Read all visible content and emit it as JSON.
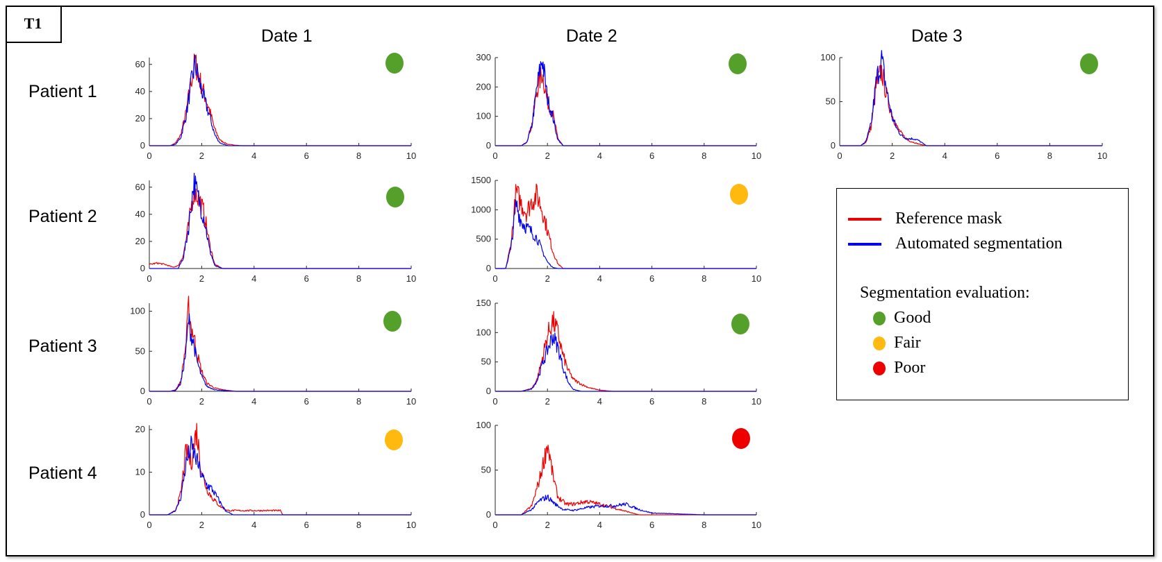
{
  "figure": {
    "corner_label": "T1",
    "columns": [
      "Date 1",
      "Date 2",
      "Date 3"
    ],
    "rows": [
      "Patient 1",
      "Patient 2",
      "Patient 3",
      "Patient 4"
    ]
  },
  "legend": {
    "reference_label": "Reference mask",
    "automated_label": "Automated segmentation",
    "evaluation_title": "Segmentation evaluation:",
    "good_label": "Good",
    "fair_label": "Fair",
    "poor_label": "Poor"
  },
  "colors": {
    "reference": "#ee0000",
    "automated": "#0000ee",
    "good": "#55a02a",
    "fair": "#ffb90f",
    "poor": "#ee0000"
  },
  "chart_data": [
    {
      "type": "line",
      "panel": "Patient 1 / Date 1",
      "evaluation": "good",
      "xlim": [
        0,
        10
      ],
      "ylim": [
        0,
        65
      ],
      "xticks": [
        0,
        2,
        4,
        6,
        8,
        10
      ],
      "yticks": [
        0,
        20,
        40,
        60
      ],
      "series": [
        {
          "legend": "reference",
          "x": [
            0,
            0.8,
            1.0,
            1.2,
            1.4,
            1.6,
            1.75,
            1.9,
            2.1,
            2.3,
            2.5,
            2.7,
            3.0,
            3.5,
            10
          ],
          "y": [
            0,
            0,
            2,
            8,
            24,
            48,
            62,
            50,
            38,
            26,
            12,
            4,
            1,
            0,
            0
          ]
        },
        {
          "legend": "automated",
          "x": [
            0,
            0.8,
            1.0,
            1.2,
            1.4,
            1.6,
            1.75,
            1.9,
            2.1,
            2.3,
            2.5,
            2.7,
            3.0,
            3.5,
            10
          ],
          "y": [
            0,
            0,
            1,
            6,
            22,
            46,
            60,
            48,
            34,
            22,
            8,
            2,
            0,
            0,
            0
          ]
        }
      ]
    },
    {
      "type": "line",
      "panel": "Patient 1 / Date 2",
      "evaluation": "good",
      "xlim": [
        0,
        10
      ],
      "ylim": [
        0,
        300
      ],
      "xticks": [
        0,
        2,
        4,
        6,
        8,
        10
      ],
      "yticks": [
        0,
        100,
        200,
        300
      ],
      "series": [
        {
          "legend": "reference",
          "x": [
            0,
            1.0,
            1.2,
            1.4,
            1.6,
            1.8,
            2.0,
            2.2,
            2.4,
            2.6,
            10
          ],
          "y": [
            0,
            0,
            12,
            70,
            190,
            250,
            150,
            110,
            25,
            0,
            0
          ]
        },
        {
          "legend": "automated",
          "x": [
            0,
            1.0,
            1.2,
            1.4,
            1.6,
            1.8,
            2.0,
            2.2,
            2.4,
            2.6,
            10
          ],
          "y": [
            0,
            0,
            10,
            65,
            200,
            300,
            160,
            100,
            20,
            0,
            0
          ]
        }
      ]
    },
    {
      "type": "line",
      "panel": "Patient 1 / Date 3",
      "evaluation": "good",
      "xlim": [
        0,
        10
      ],
      "ylim": [
        0,
        100
      ],
      "xticks": [
        0,
        2,
        4,
        6,
        8,
        10
      ],
      "yticks": [
        0,
        50,
        100
      ],
      "series": [
        {
          "legend": "reference",
          "x": [
            0,
            0.8,
            1.0,
            1.2,
            1.4,
            1.6,
            1.8,
            2.0,
            2.2,
            2.4,
            2.6,
            2.8,
            3.0,
            3.3,
            10
          ],
          "y": [
            0,
            0,
            4,
            22,
            70,
            85,
            55,
            35,
            20,
            12,
            6,
            4,
            2,
            0,
            0
          ]
        },
        {
          "legend": "automated",
          "x": [
            0,
            0.8,
            1.0,
            1.2,
            1.4,
            1.6,
            1.8,
            2.0,
            2.2,
            2.4,
            2.6,
            2.8,
            3.0,
            3.3,
            10
          ],
          "y": [
            0,
            0,
            5,
            25,
            75,
            98,
            60,
            32,
            18,
            10,
            8,
            8,
            6,
            0,
            0
          ]
        }
      ]
    },
    {
      "type": "line",
      "panel": "Patient 2 / Date 1",
      "evaluation": "good",
      "xlim": [
        0,
        10
      ],
      "ylim": [
        0,
        65
      ],
      "xticks": [
        0,
        2,
        4,
        6,
        8,
        10
      ],
      "yticks": [
        0,
        20,
        40,
        60
      ],
      "series": [
        {
          "legend": "reference",
          "x": [
            0,
            0.3,
            0.6,
            0.9,
            1.1,
            1.3,
            1.5,
            1.7,
            1.9,
            2.1,
            2.3,
            2.5,
            2.8,
            10
          ],
          "y": [
            3,
            4,
            3,
            1,
            2,
            10,
            32,
            58,
            52,
            40,
            18,
            3,
            0,
            0
          ]
        },
        {
          "legend": "automated",
          "x": [
            0,
            1.1,
            1.3,
            1.5,
            1.7,
            1.9,
            2.1,
            2.3,
            2.5,
            2.8,
            10
          ],
          "y": [
            0,
            0,
            8,
            30,
            64,
            50,
            36,
            14,
            2,
            0,
            0
          ]
        }
      ]
    },
    {
      "type": "line",
      "panel": "Patient 2 / Date 2",
      "evaluation": "fair",
      "xlim": [
        0,
        10
      ],
      "ylim": [
        0,
        1500
      ],
      "xticks": [
        0,
        2,
        4,
        6,
        8,
        10
      ],
      "yticks": [
        0,
        500,
        1000,
        1500
      ],
      "series": [
        {
          "legend": "reference",
          "x": [
            0,
            0.4,
            0.6,
            0.8,
            1.0,
            1.2,
            1.4,
            1.6,
            1.8,
            2.0,
            2.2,
            2.4,
            2.6,
            10
          ],
          "y": [
            0,
            0,
            400,
            1300,
            1100,
            950,
            1150,
            1250,
            1000,
            650,
            300,
            80,
            0,
            0
          ]
        },
        {
          "legend": "automated",
          "x": [
            0,
            0.4,
            0.6,
            0.8,
            1.0,
            1.2,
            1.4,
            1.6,
            1.8,
            2.0,
            2.2,
            2.4,
            10
          ],
          "y": [
            0,
            0,
            350,
            1100,
            800,
            700,
            620,
            520,
            300,
            110,
            20,
            0,
            0
          ]
        }
      ]
    },
    {
      "type": "line",
      "panel": "Patient 3 / Date 1",
      "evaluation": "good",
      "xlim": [
        0,
        10
      ],
      "ylim": [
        0,
        110
      ],
      "xticks": [
        0,
        2,
        4,
        6,
        8,
        10
      ],
      "yticks": [
        0,
        50,
        100
      ],
      "series": [
        {
          "legend": "reference",
          "x": [
            0,
            0.8,
            1.0,
            1.2,
            1.4,
            1.5,
            1.6,
            1.7,
            1.8,
            2.0,
            2.2,
            2.5,
            2.8,
            3.3,
            10
          ],
          "y": [
            0,
            0,
            2,
            12,
            60,
            105,
            80,
            70,
            50,
            25,
            10,
            4,
            2,
            0,
            0
          ]
        },
        {
          "legend": "automated",
          "x": [
            0,
            0.8,
            1.0,
            1.2,
            1.4,
            1.5,
            1.6,
            1.7,
            1.8,
            2.0,
            2.2,
            2.5,
            2.8,
            3.3,
            10
          ],
          "y": [
            0,
            0,
            1,
            10,
            50,
            90,
            70,
            60,
            40,
            18,
            6,
            2,
            1,
            0,
            0
          ]
        }
      ]
    },
    {
      "type": "line",
      "panel": "Patient 3 / Date 2",
      "evaluation": "good",
      "xlim": [
        0,
        10
      ],
      "ylim": [
        0,
        150
      ],
      "xticks": [
        0,
        2,
        4,
        6,
        8,
        10
      ],
      "yticks": [
        0,
        50,
        100,
        150
      ],
      "series": [
        {
          "legend": "reference",
          "x": [
            0,
            1.0,
            1.4,
            1.6,
            1.8,
            2.0,
            2.2,
            2.4,
            2.6,
            2.8,
            3.0,
            3.3,
            3.6,
            4.0,
            4.5,
            10
          ],
          "y": [
            0,
            0,
            5,
            20,
            55,
            95,
            120,
            100,
            60,
            35,
            20,
            12,
            6,
            2,
            0,
            0
          ]
        },
        {
          "legend": "automated",
          "x": [
            0,
            1.0,
            1.4,
            1.6,
            1.8,
            2.0,
            2.2,
            2.4,
            2.6,
            2.8,
            3.0,
            3.3,
            10
          ],
          "y": [
            0,
            0,
            4,
            18,
            45,
            70,
            95,
            75,
            40,
            15,
            3,
            0,
            0
          ]
        }
      ]
    },
    {
      "type": "line",
      "panel": "Patient 4 / Date 1",
      "evaluation": "fair",
      "xlim": [
        0,
        10
      ],
      "ylim": [
        0,
        21
      ],
      "xticks": [
        0,
        2,
        4,
        6,
        8,
        10
      ],
      "yticks": [
        0,
        10,
        20
      ],
      "series": [
        {
          "legend": "reference",
          "x": [
            0,
            0.7,
            1.0,
            1.2,
            1.4,
            1.6,
            1.8,
            2.0,
            2.2,
            2.4,
            2.7,
            3.0,
            3.5,
            4.0,
            4.5,
            5.0,
            5.1,
            10
          ],
          "y": [
            0,
            0,
            1,
            5,
            15,
            12,
            20,
            10,
            6,
            4,
            2,
            1,
            1,
            1,
            1,
            1,
            0,
            0
          ]
        },
        {
          "legend": "automated",
          "x": [
            0,
            0.7,
            1.0,
            1.2,
            1.4,
            1.6,
            1.8,
            2.0,
            2.2,
            2.4,
            2.6,
            2.9,
            3.2,
            10
          ],
          "y": [
            0,
            0,
            1,
            4,
            12,
            16,
            13,
            9,
            7,
            6,
            4,
            1,
            0,
            0
          ]
        }
      ]
    },
    {
      "type": "line",
      "panel": "Patient 4 / Date 2",
      "evaluation": "poor",
      "xlim": [
        0,
        10
      ],
      "ylim": [
        0,
        100
      ],
      "xticks": [
        0,
        2,
        4,
        6,
        8,
        10
      ],
      "yticks": [
        0,
        50,
        100
      ],
      "series": [
        {
          "legend": "reference",
          "x": [
            0,
            1.0,
            1.4,
            1.7,
            1.9,
            2.0,
            2.2,
            2.4,
            2.7,
            3.0,
            3.5,
            4.0,
            4.5,
            5.0,
            5.5,
            10
          ],
          "y": [
            0,
            0,
            10,
            40,
            65,
            80,
            45,
            20,
            12,
            12,
            15,
            12,
            8,
            4,
            0,
            0
          ]
        },
        {
          "legend": "automated",
          "x": [
            0,
            1.0,
            1.4,
            1.7,
            2.0,
            2.3,
            2.6,
            3.0,
            3.5,
            4.0,
            4.5,
            5.0,
            5.5,
            6.0,
            7.0,
            8.0,
            10
          ],
          "y": [
            0,
            0,
            6,
            16,
            20,
            12,
            6,
            5,
            8,
            10,
            10,
            12,
            6,
            2,
            1,
            0,
            0
          ]
        }
      ]
    }
  ]
}
